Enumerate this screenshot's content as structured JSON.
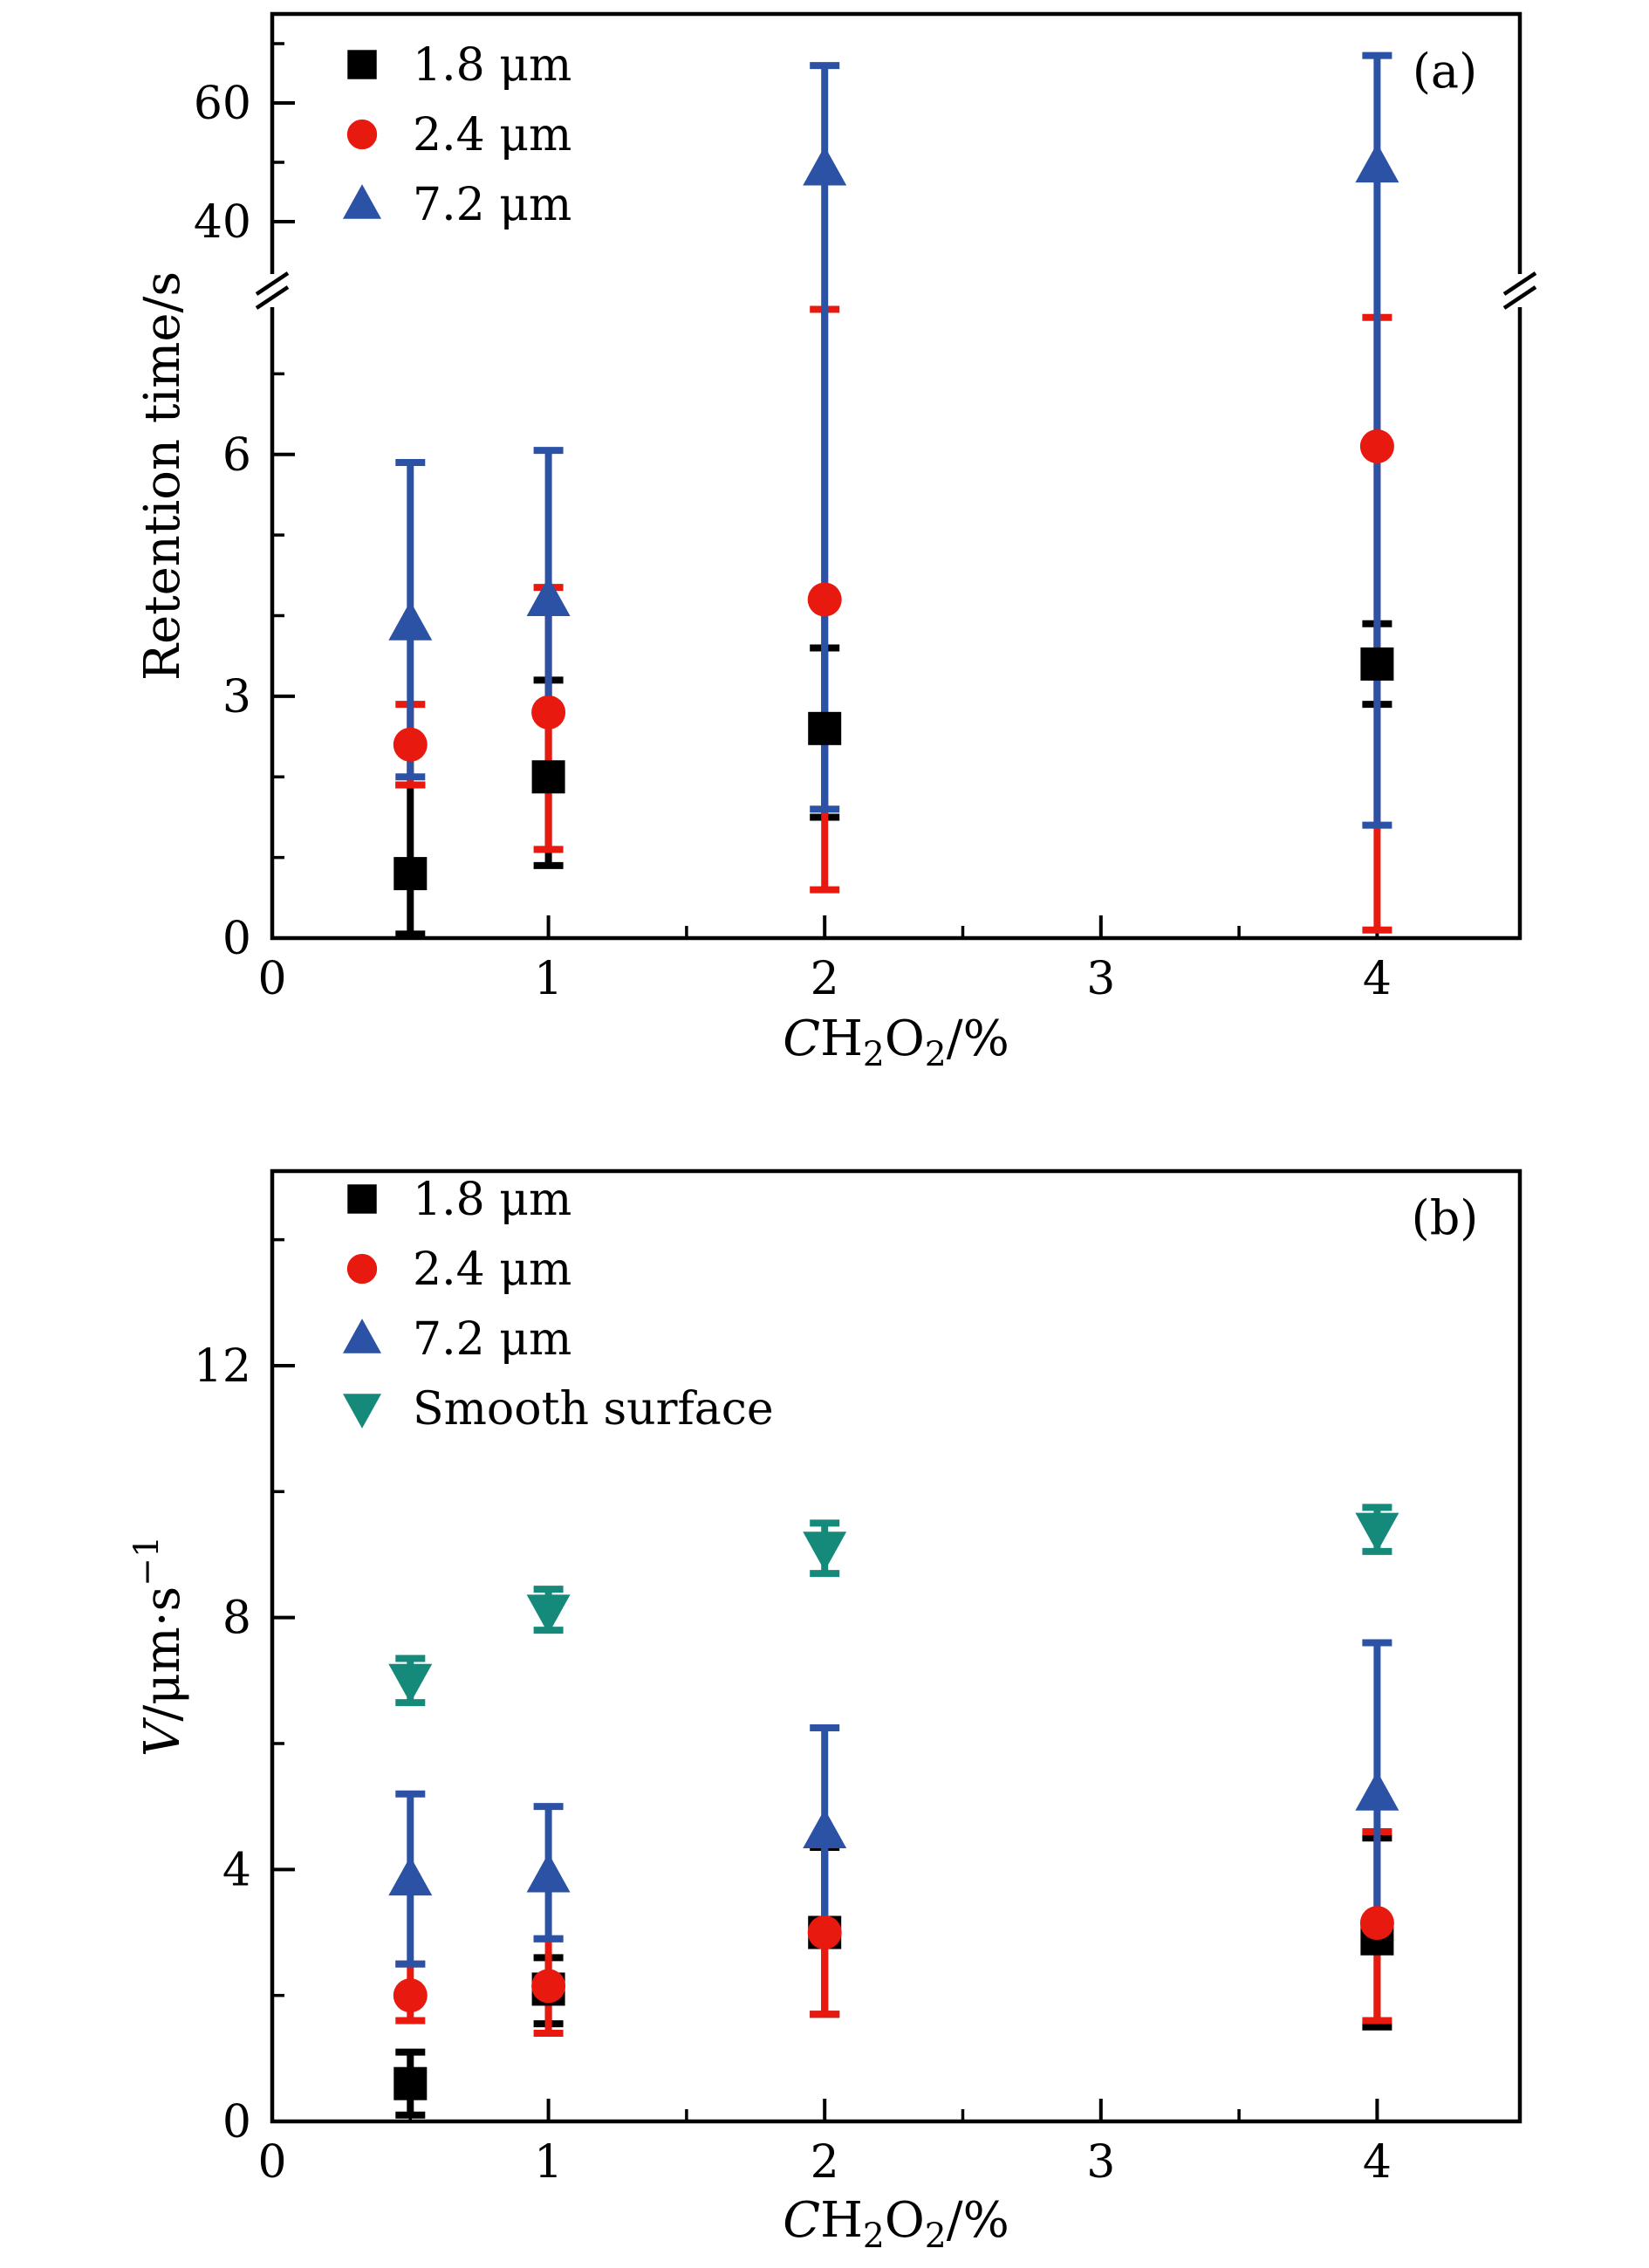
{
  "figure": {
    "background": "#ffffff"
  },
  "colors": {
    "black": "#000000",
    "red": "#e8190f",
    "blue": "#2b52a5",
    "teal": "#168a7a"
  },
  "chart_data": [
    {
      "type": "scatter",
      "panel_label": "(a)",
      "xlabel_tokens": [
        {
          "t": "C",
          "style": "italic"
        },
        {
          "t": "H"
        },
        {
          "t": "2",
          "style": "sub"
        },
        {
          "t": "O"
        },
        {
          "t": "2",
          "style": "sub"
        },
        {
          "t": "/%"
        }
      ],
      "ylabel_tokens": [
        {
          "t": "Retention time/s"
        }
      ],
      "xlim": [
        0,
        4.52
      ],
      "x_major_ticks": [
        0,
        1,
        2,
        3,
        4
      ],
      "x_minor_ticks": [
        0.5,
        1.5,
        2.5,
        3.5
      ],
      "y_axis": {
        "broken": true,
        "lower_range": [
          0,
          8
        ],
        "upper_range": [
          30,
          75
        ],
        "major_ticks_lower": [
          0,
          3,
          6
        ],
        "minor_ticks_lower": [
          1,
          2,
          4,
          5,
          7
        ],
        "major_ticks_upper": [
          40,
          60
        ],
        "minor_ticks_upper": [
          50,
          70
        ]
      },
      "grid": false,
      "legend_position": "top-left",
      "series": [
        {
          "name": "1.8 μm",
          "marker": "square",
          "color": "black",
          "x": [
            0.5,
            1,
            2,
            4
          ],
          "y": [
            0.8,
            2.0,
            2.6,
            3.4
          ],
          "y_err_low": [
            0.05,
            0.9,
            1.5,
            2.9
          ],
          "y_err_high": [
            1.9,
            3.2,
            3.6,
            3.9
          ]
        },
        {
          "name": "2.4 μm",
          "marker": "circle",
          "color": "red",
          "x": [
            0.5,
            1,
            2,
            4
          ],
          "y": [
            2.4,
            2.8,
            4.2,
            6.1
          ],
          "y_err_low": [
            1.9,
            1.1,
            0.6,
            0.1
          ],
          "y_err_high": [
            2.9,
            4.35,
            7.8,
            7.7
          ]
        },
        {
          "name": "7.2 μm",
          "marker": "triangle-up",
          "color": "blue",
          "x": [
            0.5,
            1,
            2,
            4
          ],
          "y": [
            3.9,
            4.2,
            48.9,
            49.4
          ],
          "y_err_low": [
            2.0,
            2.8,
            1.6,
            1.4
          ],
          "y_err_high": [
            5.9,
            6.05,
            66.3,
            68.0
          ]
        }
      ]
    },
    {
      "type": "scatter",
      "panel_label": "(b)",
      "xlabel_tokens": [
        {
          "t": "C",
          "style": "italic"
        },
        {
          "t": "H"
        },
        {
          "t": "2",
          "style": "sub"
        },
        {
          "t": "O"
        },
        {
          "t": "2",
          "style": "sub"
        },
        {
          "t": "/%"
        }
      ],
      "ylabel_tokens": [
        {
          "t": "V",
          "style": "italic"
        },
        {
          "t": "/μm·s"
        },
        {
          "t": "−1",
          "style": "sup"
        }
      ],
      "xlim": [
        0,
        4.52
      ],
      "x_major_ticks": [
        0,
        1,
        2,
        3,
        4
      ],
      "x_minor_ticks": [
        0.5,
        1.5,
        2.5,
        3.5
      ],
      "y_axis": {
        "broken": false,
        "range": [
          0,
          15
        ],
        "major_ticks": [
          0,
          4,
          8,
          12
        ],
        "minor_ticks": [
          2,
          6,
          10,
          14
        ]
      },
      "grid": false,
      "legend_position": "top-left",
      "series": [
        {
          "name": "1.8 μm",
          "marker": "square",
          "color": "black",
          "x": [
            0.5,
            1,
            2,
            4
          ],
          "y": [
            0.6,
            2.1,
            3.0,
            2.9
          ],
          "y_err_low": [
            0.1,
            1.55,
            1.7,
            1.5
          ],
          "y_err_high": [
            1.1,
            2.6,
            4.35,
            4.5
          ]
        },
        {
          "name": "2.4 μm",
          "marker": "circle",
          "color": "red",
          "x": [
            0.5,
            1,
            2,
            4
          ],
          "y": [
            2.0,
            2.15,
            3.0,
            3.15
          ],
          "y_err_low": [
            1.6,
            1.4,
            1.7,
            1.6
          ],
          "y_err_high": [
            2.5,
            2.9,
            4.4,
            4.6
          ]
        },
        {
          "name": "7.2 μm",
          "marker": "triangle-up",
          "color": "blue",
          "x": [
            0.5,
            1,
            2,
            4
          ],
          "y": [
            3.85,
            3.9,
            4.6,
            5.2
          ],
          "y_err_low": [
            2.5,
            2.9,
            3.0,
            2.85
          ],
          "y_err_high": [
            5.2,
            5.0,
            6.25,
            7.6
          ]
        },
        {
          "name": "Smooth surface",
          "marker": "triangle-down",
          "color": "teal",
          "x": [
            0.5,
            1,
            2,
            4
          ],
          "y": [
            7.0,
            8.1,
            9.1,
            9.4
          ],
          "y_err_low": [
            6.65,
            7.8,
            8.7,
            9.05
          ],
          "y_err_high": [
            7.35,
            8.45,
            9.5,
            9.75
          ]
        }
      ]
    }
  ]
}
